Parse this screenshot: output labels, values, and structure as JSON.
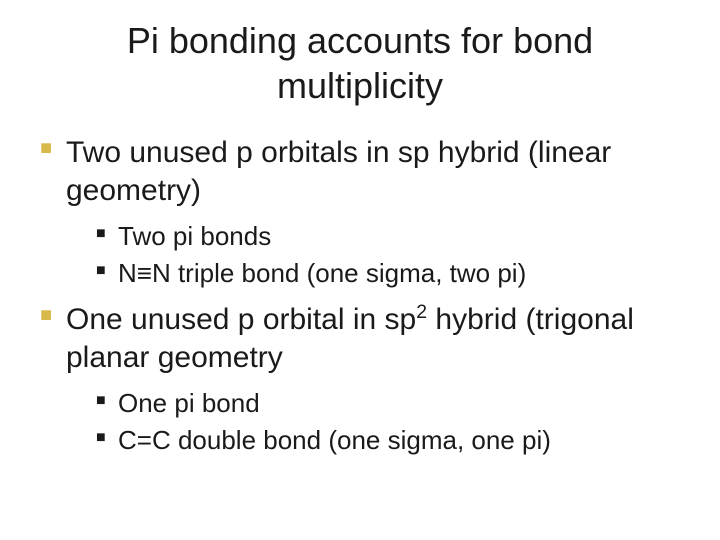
{
  "title": "Pi bonding accounts for bond multiplicity",
  "bulletColors": {
    "level1": "#d9b84a",
    "level2": "#1a1a1a"
  },
  "textColor": "#1a1a1a",
  "background": "#ffffff",
  "fontSizes": {
    "title": 36,
    "level1": 30,
    "level2": 26
  },
  "items": [
    {
      "text": "Two unused p orbitals in sp hybrid (linear geometry)",
      "sub": [
        {
          "text": "Two pi bonds"
        },
        {
          "text": "N≡N triple bond (one sigma, two pi)"
        }
      ]
    },
    {
      "text_prefix": "One unused p orbital in sp",
      "text_sup": "2",
      "text_suffix": " hybrid (trigonal planar geometry",
      "sub": [
        {
          "text": "One pi bond"
        },
        {
          "text": "C=C double bond (one sigma, one pi)"
        }
      ]
    }
  ]
}
